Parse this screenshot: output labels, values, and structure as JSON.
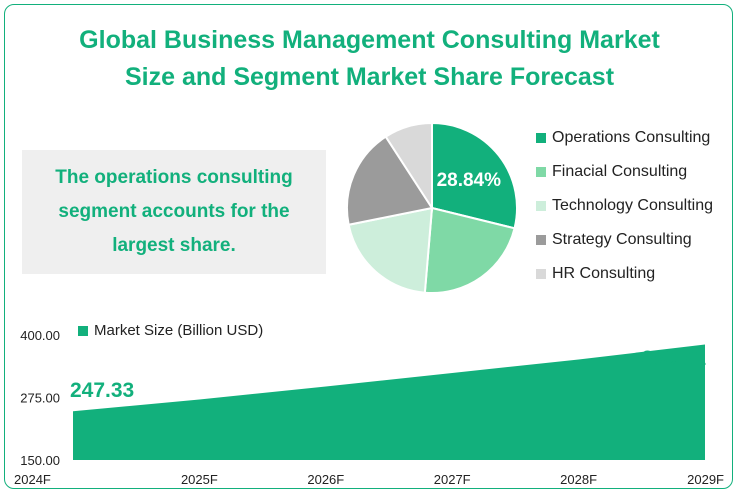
{
  "title": {
    "line1": "Global Business Management Consulting Market",
    "line2": "Size and Segment Market Share Forecast"
  },
  "callout": "The operations consulting segment accounts for the largest share.",
  "colors": {
    "accent": "#12b07c",
    "pie": [
      "#12b07c",
      "#7fd9a6",
      "#cdeedb",
      "#9b9b9b",
      "#d9d9d9"
    ]
  },
  "chart_data": [
    {
      "type": "pie",
      "labels": [
        "Operations Consulting",
        "Finacial Consulting",
        "Technology Consulting",
        "Strategy Consulting",
        "HR Consulting"
      ],
      "values": [
        28.84,
        22.5,
        20.5,
        19.0,
        9.16
      ],
      "data_labels": [
        "28.84%",
        "",
        "",
        "",
        ""
      ],
      "legend_position": "right"
    },
    {
      "type": "area",
      "categories": [
        "2024F",
        "2025F",
        "2026F",
        "2027F",
        "2028F",
        "2029F"
      ],
      "series": [
        {
          "name": "Market Size (Billion USD)",
          "values": [
            247.33,
            271.0,
            297.0,
            324.0,
            351.0,
            380.91
          ]
        }
      ],
      "data_labels": [
        "247.33",
        "",
        "",
        "",
        "",
        "380.91"
      ],
      "yticks": [
        "400.00",
        "275.00",
        "150.00"
      ],
      "ylim": [
        150,
        400
      ],
      "legend_position": "top-left"
    }
  ]
}
